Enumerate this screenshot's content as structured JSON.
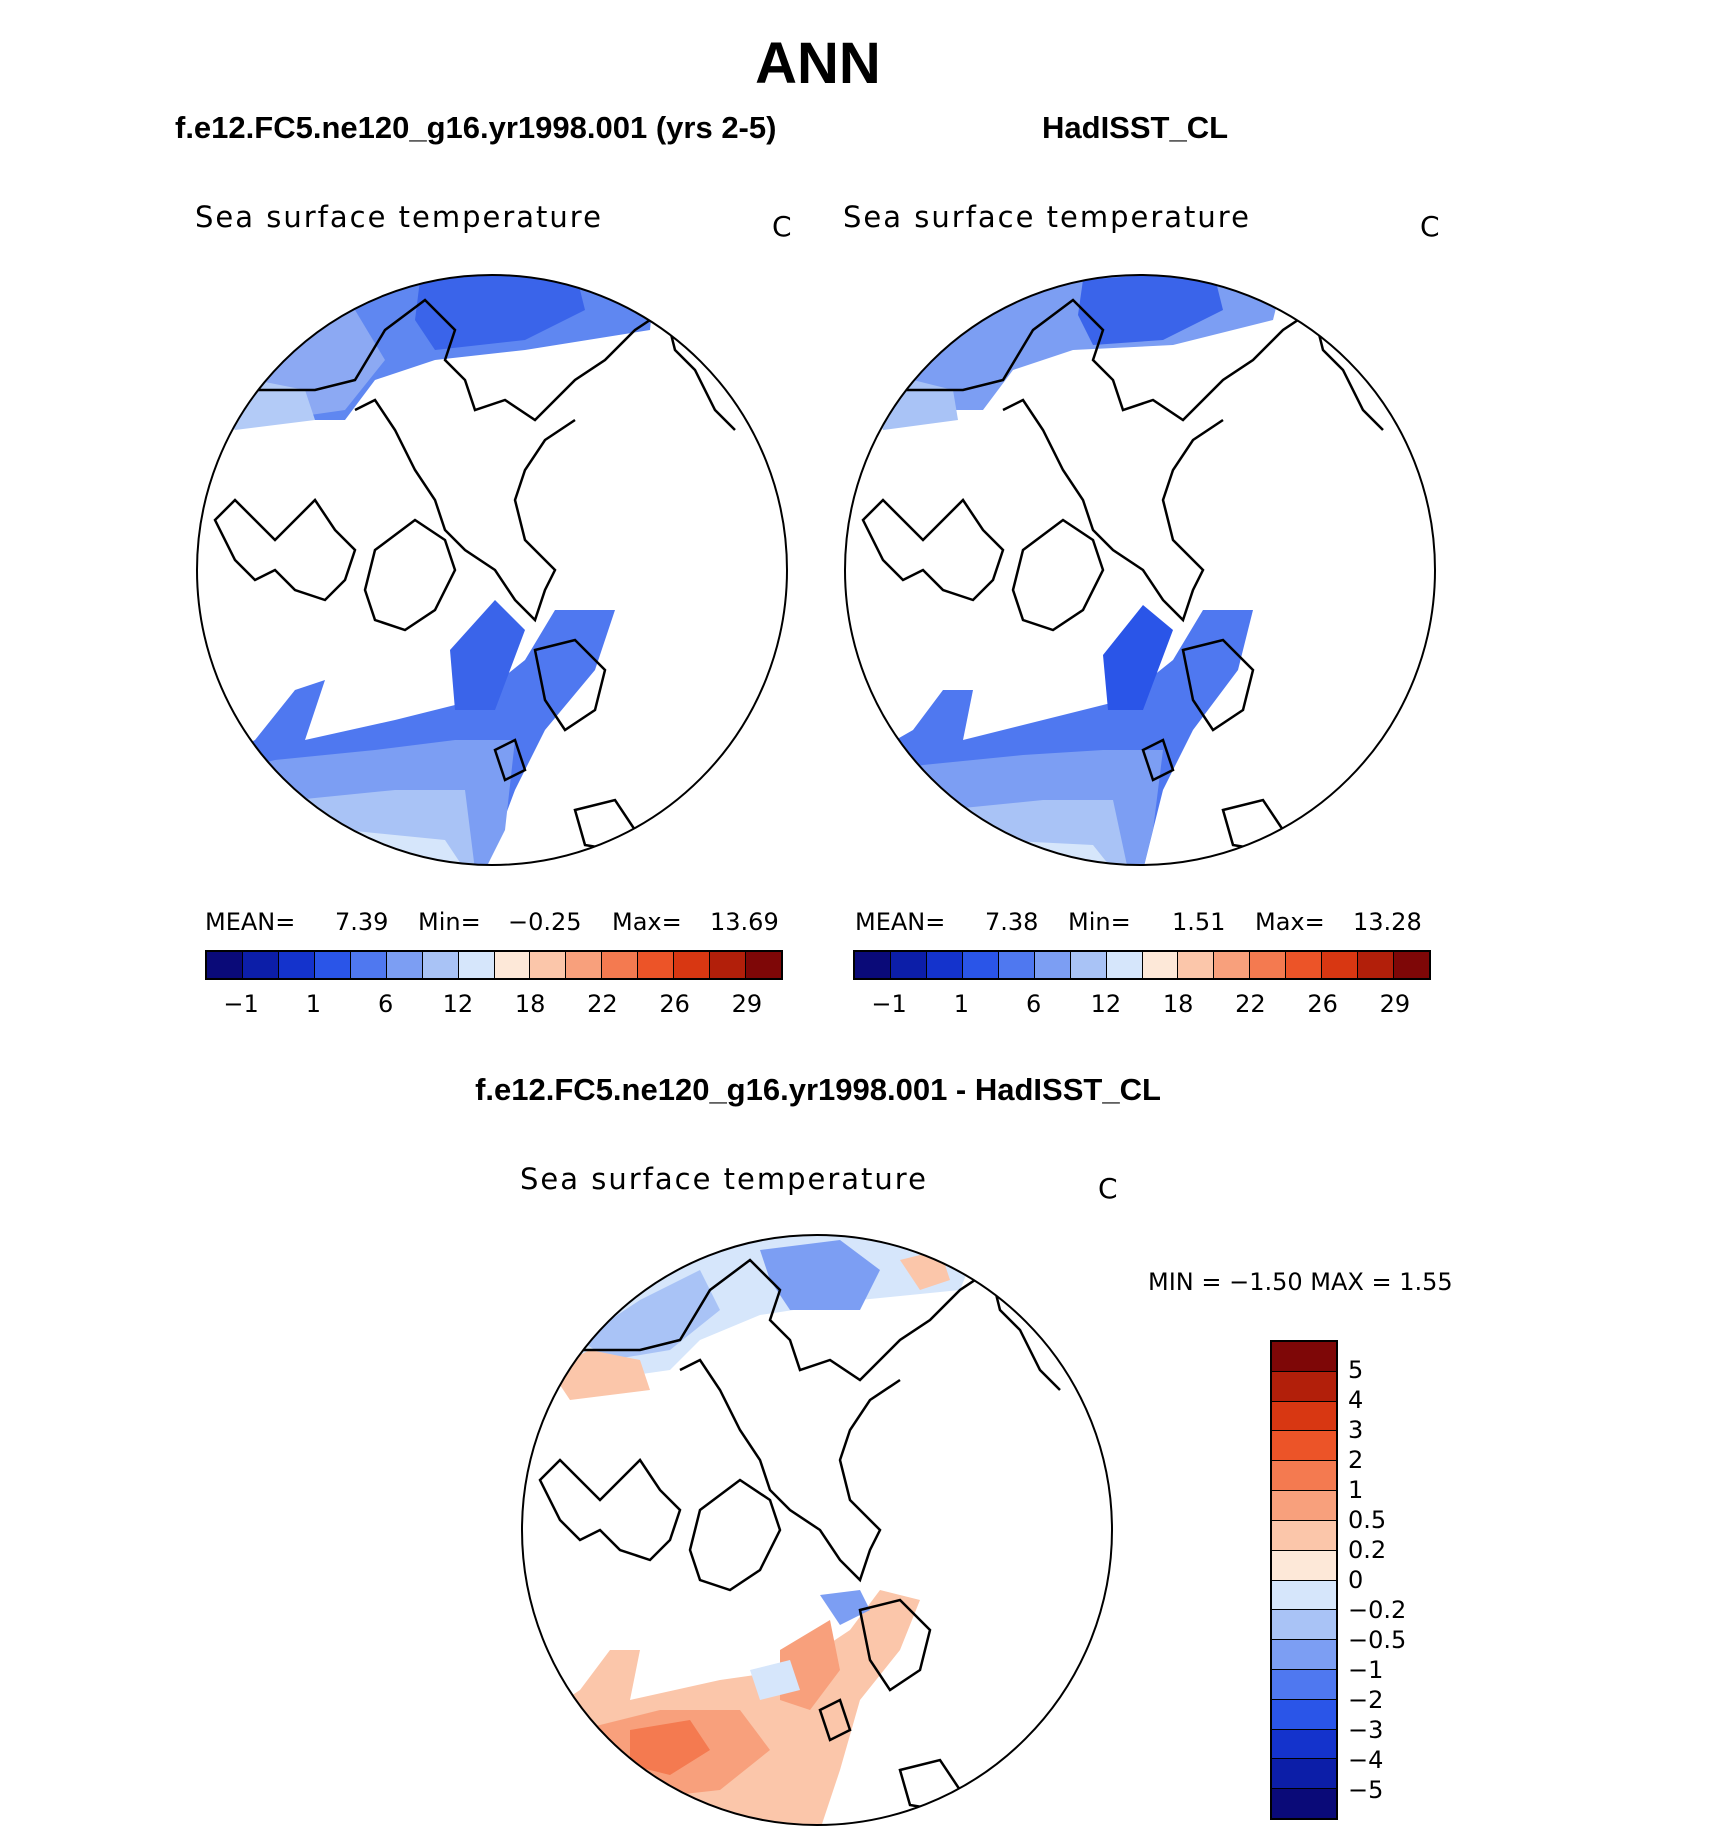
{
  "page_title": "ANN",
  "panels": [
    {
      "title": "f.e12.FC5.ne120_g16.yr1998.001 (yrs 2-5)",
      "variable": "Sea surface temperature",
      "units": "C",
      "stats": {
        "mean_label": "MEAN=",
        "mean": "7.39",
        "min_label": "Min=",
        "min": "−0.25",
        "max_label": "Max=",
        "max": "13.69"
      },
      "colorbar_ticks": [
        "−1",
        "1",
        "6",
        "12",
        "18",
        "22",
        "26",
        "29"
      ]
    },
    {
      "title": "HadISST_CL",
      "variable": "Sea surface temperature",
      "units": "C",
      "stats": {
        "mean_label": "MEAN=",
        "mean": "7.38",
        "min_label": "Min=",
        "min": "1.51",
        "max_label": "Max=",
        "max": "13.28"
      },
      "colorbar_ticks": [
        "−1",
        "1",
        "6",
        "12",
        "18",
        "22",
        "26",
        "29"
      ]
    }
  ],
  "difference_panel": {
    "title": "f.e12.FC5.ne120_g16.yr1998.001 - HadISST_CL",
    "variable": "Sea surface temperature",
    "units": "C",
    "stats_text": "MIN =  −1.50 MAX =    1.55",
    "colorbar_labels": [
      "5",
      "4",
      "3",
      "2",
      "1",
      "0.5",
      "0.2",
      "0",
      "−0.2",
      "−0.5",
      "−1",
      "−2",
      "−3",
      "−4",
      "−5"
    ]
  },
  "colors": {
    "sst_scale": [
      "#0a0a78",
      "#0c1ea8",
      "#1433cc",
      "#2a55e8",
      "#4f78f0",
      "#7c9ef3",
      "#a9c3f6",
      "#d6e6fb",
      "#fde8d8",
      "#fbc6aa",
      "#f8a07c",
      "#f47a50",
      "#ec5428",
      "#d83712",
      "#b21f0a",
      "#7e0707"
    ],
    "diff_scale": [
      "#7e0707",
      "#b21f0a",
      "#d83712",
      "#ec5428",
      "#f47a50",
      "#f8a07c",
      "#fbc6aa",
      "#fde8d8",
      "#d6e6fb",
      "#a9c3f6",
      "#7c9ef3",
      "#4f78f0",
      "#2a55e8",
      "#1433cc",
      "#0c1ea8",
      "#0a0a78"
    ]
  }
}
